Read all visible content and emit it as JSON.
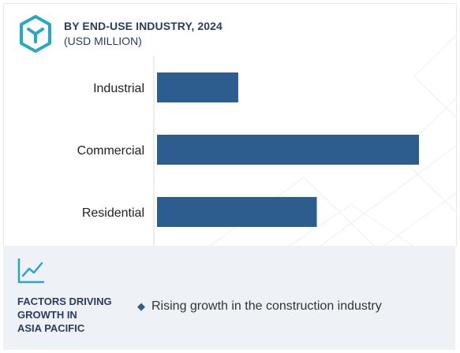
{
  "header": {
    "title": "BY END-USE INDUSTRY, 2024",
    "subtitle": "(USD MILLION)"
  },
  "colors": {
    "bar": "#2d5c8e",
    "accent": "#29a7c9",
    "heading": "#2a3e5c"
  },
  "icons": {
    "logo": "hexagon-cube-icon",
    "factors": "trend-line-icon",
    "bullet": "diamond-bullet-icon"
  },
  "chart_data": {
    "type": "bar",
    "orientation": "horizontal",
    "title": "BY END-USE INDUSTRY, 2024",
    "subtitle": "(USD MILLION)",
    "categories": [
      "Industrial",
      "Commercial",
      "Residential"
    ],
    "values": [
      31,
      100,
      61
    ],
    "xlim": [
      0,
      100
    ],
    "grid": false,
    "legend": "none"
  },
  "factors": {
    "heading_lines": [
      "FACTORS DRIVING",
      "GROWTH IN",
      "ASIA PACIFIC"
    ],
    "items": [
      "Rising growth in the construction industry"
    ]
  }
}
